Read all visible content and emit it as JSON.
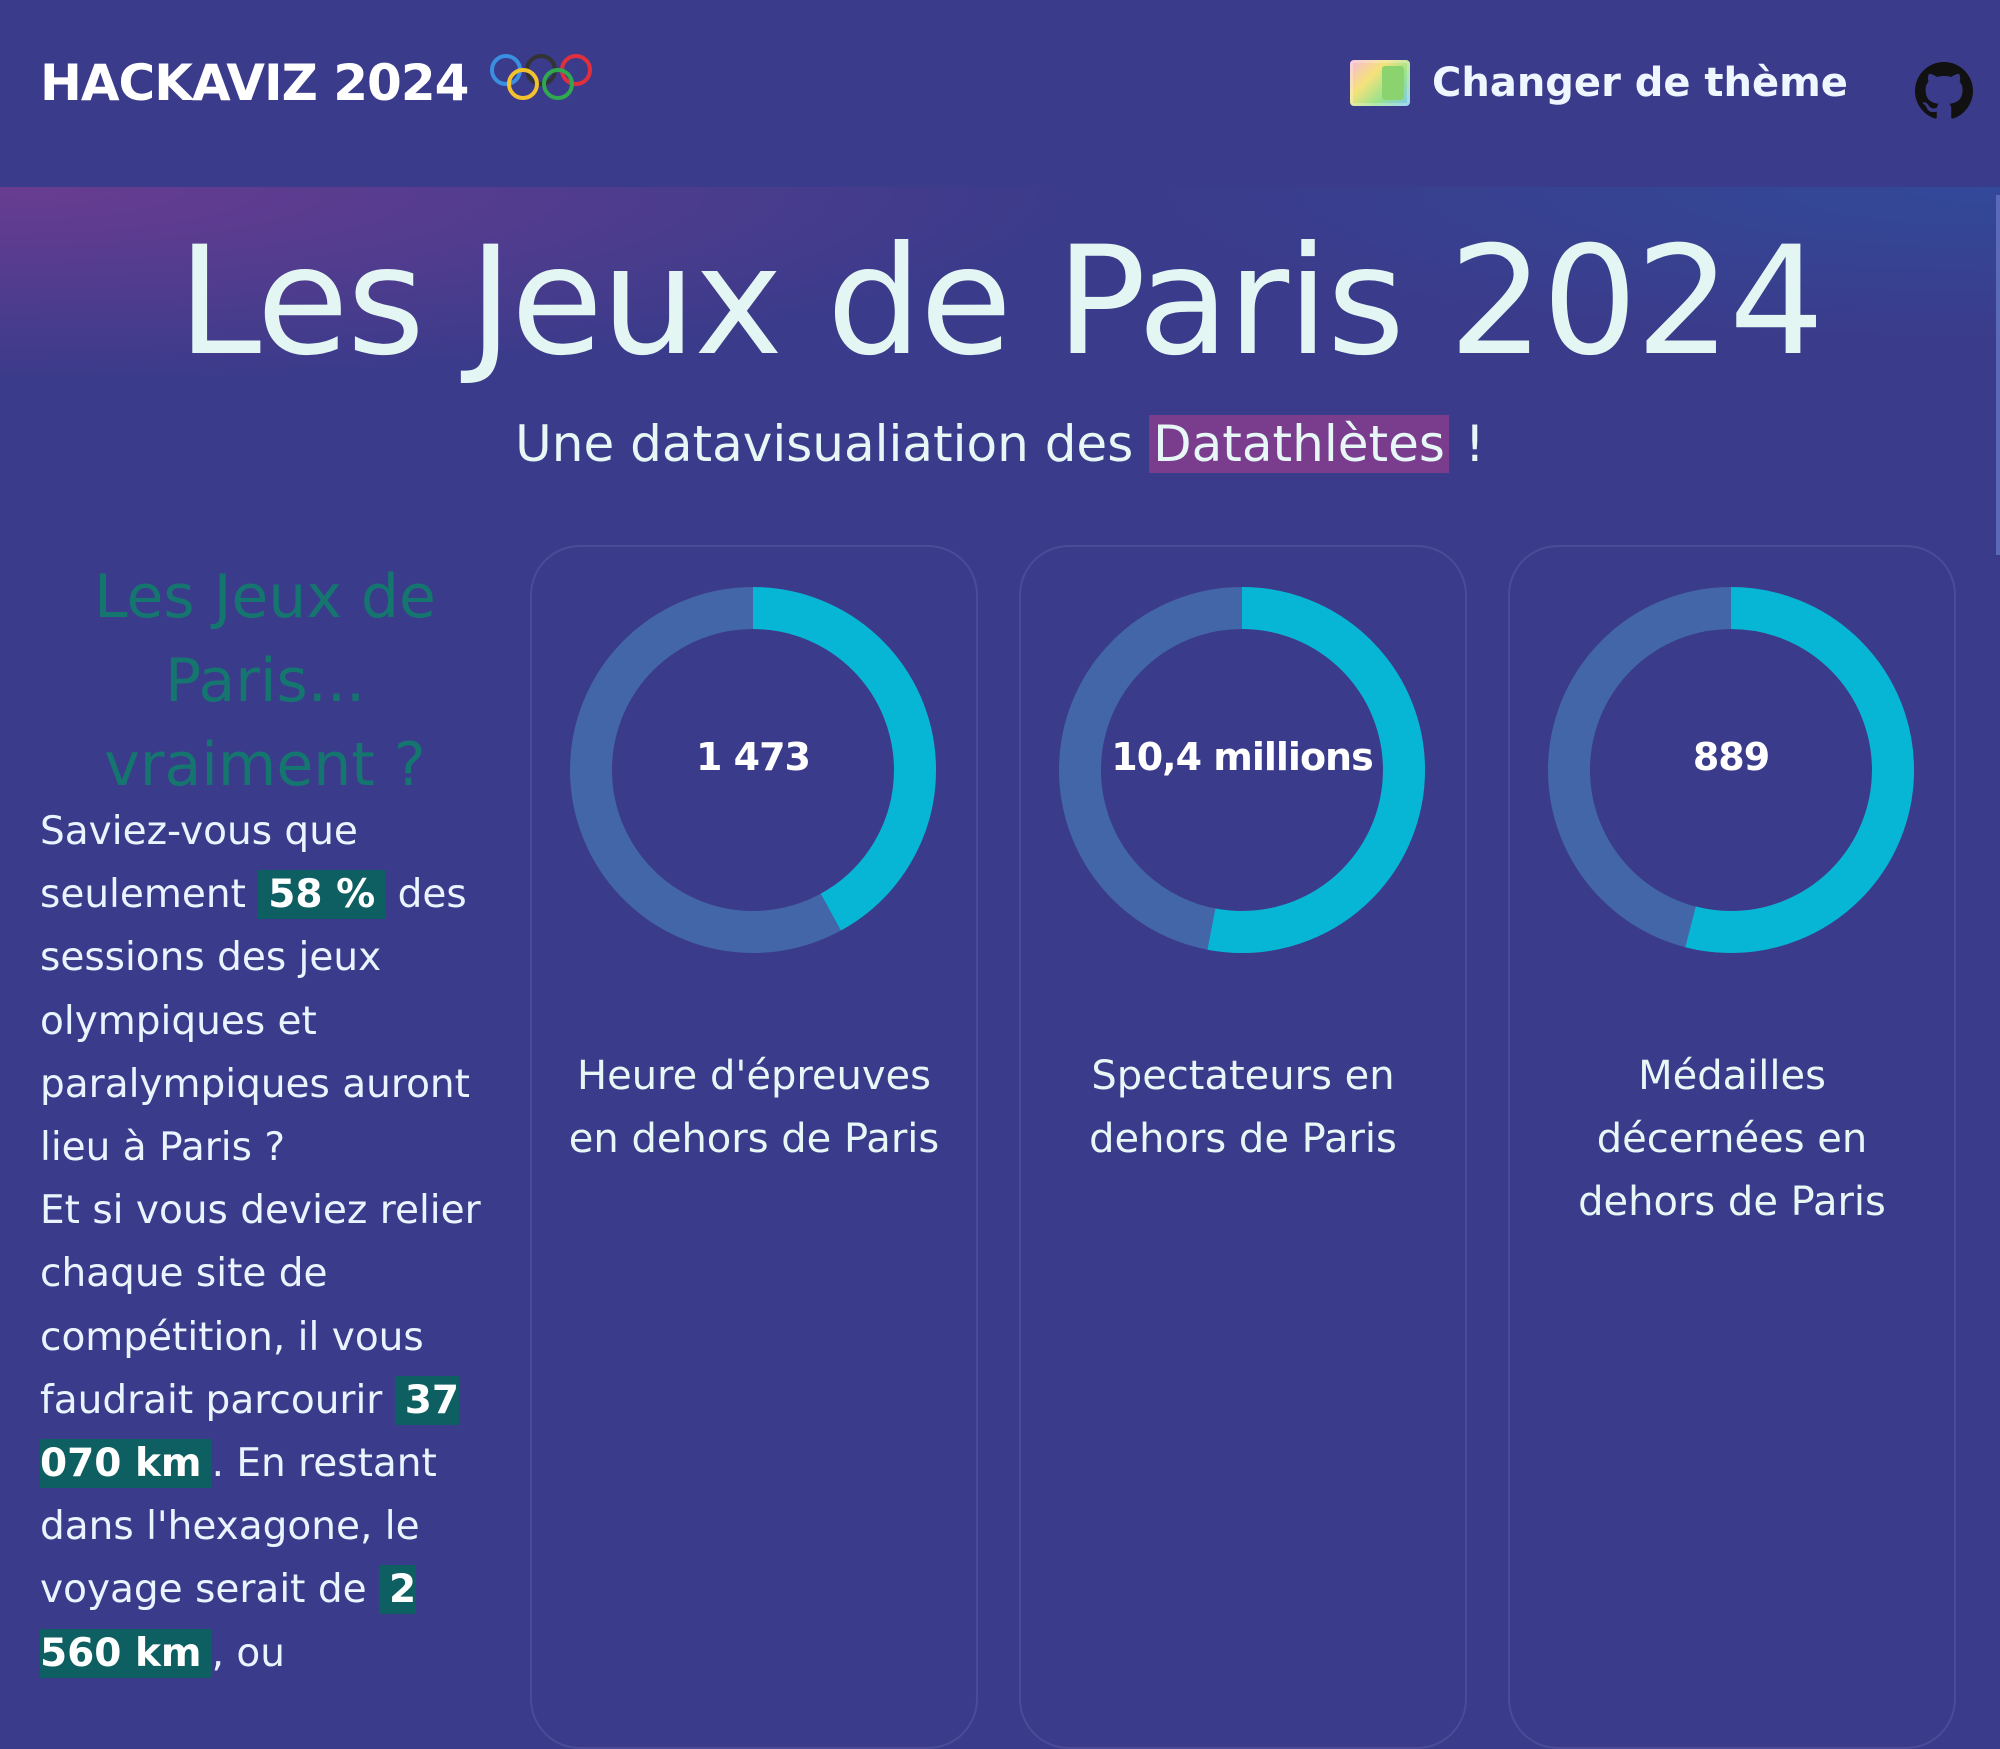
{
  "header": {
    "brand": "HACKAVIZ 2024",
    "theme_label": "Changer de thème"
  },
  "hero": {
    "title": "Les Jeux de Paris 2024",
    "subtitle_before": "Une datavisualiation des ",
    "subtitle_highlight": "Datathlètes",
    "subtitle_after": " !"
  },
  "side": {
    "title": "Les Jeux de Paris... vraiment ?",
    "p1_before": "Saviez-vous que seulement ",
    "p1_badge": "58 %",
    "p1_after": " des sessions des jeux olympiques et paralympiques auront lieu à Paris ?",
    "p2_before": "Et si vous deviez relier chaque site de compétition, il vous faudrait parcourir ",
    "p2_badge1": "37 070 km",
    "p2_mid": ". En restant dans l'hexagone, le voyage serait de ",
    "p2_badge2": "2 560 km",
    "p2_after": ", ou"
  },
  "cards": [
    {
      "value": "1 473",
      "caption": "Heure d'épreuves en dehors de Paris",
      "fraction": 0.42
    },
    {
      "value": "10,4 millions",
      "caption": "Spectateurs en dehors de Paris",
      "fraction": 0.53
    },
    {
      "value": "889",
      "caption": "Médailles décernées en dehors de Paris",
      "fraction": 0.54
    }
  ],
  "colors": {
    "background": "#3b3b8b",
    "donut_track": "#4266a8",
    "donut_fill": "#06b6d4",
    "badge": "#0d5f62",
    "highlight": "#7a3d8e",
    "side_title": "#14766f"
  }
}
